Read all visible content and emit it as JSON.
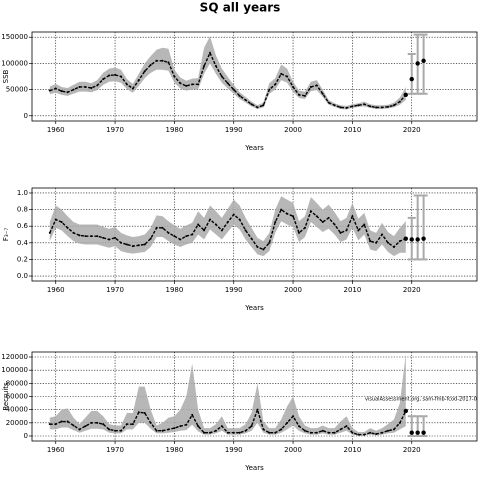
{
  "chart_data": [
    {
      "type": "line",
      "title": "SQ all years",
      "xlabel": "Years",
      "ylabel": "SSB",
      "grid": true,
      "color": "#000000",
      "band_color": "#aaaaaa",
      "projection_color": "#aaaaaa",
      "xlim": [
        1956,
        2031
      ],
      "xticks": [
        1960,
        1970,
        1980,
        1990,
        2000,
        2010,
        2020
      ],
      "ylim": [
        -10000,
        160000
      ],
      "yticks": [
        0,
        50000,
        100000,
        150000
      ],
      "x": [
        1959,
        1960,
        1961,
        1962,
        1963,
        1964,
        1965,
        1966,
        1967,
        1968,
        1969,
        1970,
        1971,
        1972,
        1973,
        1974,
        1975,
        1976,
        1977,
        1978,
        1979,
        1980,
        1981,
        1982,
        1983,
        1984,
        1985,
        1986,
        1987,
        1988,
        1989,
        1990,
        1991,
        1992,
        1993,
        1994,
        1995,
        1996,
        1997,
        1998,
        1999,
        2000,
        2001,
        2002,
        2003,
        2004,
        2005,
        2006,
        2007,
        2008,
        2009,
        2010,
        2011,
        2012,
        2013,
        2014,
        2015,
        2016,
        2017,
        2018,
        2019
      ],
      "values": [
        48000,
        52000,
        47000,
        45000,
        50000,
        55000,
        55000,
        53000,
        58000,
        70000,
        77000,
        78000,
        75000,
        60000,
        52000,
        68000,
        85000,
        97000,
        105000,
        105000,
        102000,
        75000,
        62000,
        57000,
        60000,
        60000,
        95000,
        120000,
        95000,
        75000,
        62000,
        50000,
        38000,
        30000,
        22000,
        16000,
        20000,
        50000,
        60000,
        80000,
        75000,
        55000,
        40000,
        38000,
        55000,
        58000,
        42000,
        25000,
        20000,
        16000,
        15000,
        18000,
        20000,
        22000,
        18000,
        16000,
        16000,
        17000,
        20000,
        27000,
        40000
      ],
      "lower": [
        41000,
        44000,
        40000,
        38000,
        42000,
        46000,
        46000,
        45000,
        49000,
        59000,
        65000,
        66000,
        63000,
        51000,
        44000,
        57000,
        72000,
        82000,
        88000,
        88000,
        86000,
        63000,
        52000,
        48000,
        50000,
        50000,
        80000,
        100000,
        80000,
        63000,
        52000,
        42000,
        32000,
        25000,
        18000,
        13000,
        16000,
        42000,
        50000,
        68000,
        63000,
        46000,
        34000,
        32000,
        47000,
        49000,
        36000,
        21000,
        17000,
        13000,
        12000,
        15000,
        17000,
        18000,
        15000,
        13000,
        13000,
        14000,
        16000,
        21000,
        30000
      ],
      "upper": [
        56000,
        61000,
        55000,
        53000,
        59000,
        65000,
        65000,
        62000,
        68000,
        82000,
        90000,
        92000,
        88000,
        70000,
        61000,
        80000,
        100000,
        114000,
        126000,
        130000,
        128000,
        88000,
        73000,
        67000,
        71000,
        72000,
        130000,
        152000,
        115000,
        90000,
        74000,
        59000,
        45000,
        36000,
        27000,
        20000,
        25000,
        62000,
        72000,
        98000,
        90000,
        65000,
        48000,
        46000,
        65000,
        68000,
        50000,
        30000,
        24000,
        20000,
        19000,
        22000,
        24000,
        27000,
        22000,
        20000,
        20000,
        21000,
        25000,
        35000,
        55000
      ],
      "projection": {
        "x": [
          2020,
          2021,
          2022
        ],
        "values": [
          70000,
          100000,
          105000
        ],
        "lower": [
          42000,
          42000,
          42000
        ],
        "upper": [
          118000,
          155000,
          155000
        ]
      }
    },
    {
      "type": "line",
      "xlabel": "Years",
      "ylabel": "F₃₋₇",
      "grid": true,
      "color": "#000000",
      "band_color": "#aaaaaa",
      "projection_color": "#aaaaaa",
      "xlim": [
        1956,
        2031
      ],
      "xticks": [
        1960,
        1970,
        1980,
        1990,
        2000,
        2010,
        2020
      ],
      "ylim": [
        -0.06,
        1.06
      ],
      "yticks": [
        {
          "value": 0,
          "label": "0.0"
        },
        0.2,
        0.4,
        0.6,
        0.8,
        {
          "value": 1,
          "label": "1.0"
        }
      ],
      "x": [
        1959,
        1960,
        1961,
        1962,
        1963,
        1964,
        1965,
        1966,
        1967,
        1968,
        1969,
        1970,
        1971,
        1972,
        1973,
        1974,
        1975,
        1976,
        1977,
        1978,
        1979,
        1980,
        1981,
        1982,
        1983,
        1984,
        1985,
        1986,
        1987,
        1988,
        1989,
        1990,
        1991,
        1992,
        1993,
        1994,
        1995,
        1996,
        1997,
        1998,
        1999,
        2000,
        2001,
        2002,
        2003,
        2004,
        2005,
        2006,
        2007,
        2008,
        2009,
        2010,
        2011,
        2012,
        2013,
        2014,
        2015,
        2016,
        2017,
        2018,
        2019
      ],
      "values": [
        0.52,
        0.68,
        0.65,
        0.58,
        0.52,
        0.49,
        0.48,
        0.48,
        0.48,
        0.46,
        0.44,
        0.46,
        0.4,
        0.38,
        0.36,
        0.37,
        0.38,
        0.45,
        0.58,
        0.58,
        0.52,
        0.48,
        0.44,
        0.48,
        0.5,
        0.62,
        0.55,
        0.68,
        0.62,
        0.55,
        0.65,
        0.74,
        0.68,
        0.55,
        0.45,
        0.35,
        0.32,
        0.4,
        0.65,
        0.8,
        0.75,
        0.72,
        0.52,
        0.58,
        0.78,
        0.72,
        0.65,
        0.7,
        0.62,
        0.52,
        0.55,
        0.72,
        0.55,
        0.62,
        0.42,
        0.4,
        0.5,
        0.4,
        0.35,
        0.42,
        0.45
      ],
      "lower": [
        0.42,
        0.58,
        0.55,
        0.48,
        0.42,
        0.39,
        0.38,
        0.38,
        0.38,
        0.36,
        0.34,
        0.36,
        0.3,
        0.28,
        0.27,
        0.28,
        0.29,
        0.35,
        0.47,
        0.47,
        0.42,
        0.38,
        0.35,
        0.38,
        0.4,
        0.5,
        0.44,
        0.56,
        0.5,
        0.44,
        0.53,
        0.62,
        0.56,
        0.44,
        0.35,
        0.26,
        0.24,
        0.3,
        0.52,
        0.66,
        0.62,
        0.59,
        0.41,
        0.47,
        0.65,
        0.59,
        0.53,
        0.57,
        0.5,
        0.41,
        0.44,
        0.58,
        0.43,
        0.5,
        0.32,
        0.3,
        0.38,
        0.29,
        0.24,
        0.28,
        0.28
      ],
      "upper": [
        0.65,
        0.85,
        0.8,
        0.72,
        0.65,
        0.62,
        0.62,
        0.62,
        0.62,
        0.59,
        0.57,
        0.59,
        0.52,
        0.49,
        0.47,
        0.48,
        0.5,
        0.58,
        0.73,
        0.72,
        0.66,
        0.61,
        0.57,
        0.61,
        0.64,
        0.78,
        0.7,
        0.85,
        0.78,
        0.7,
        0.81,
        0.92,
        0.85,
        0.7,
        0.58,
        0.46,
        0.42,
        0.52,
        0.8,
        0.96,
        0.92,
        0.88,
        0.66,
        0.72,
        0.95,
        0.88,
        0.8,
        0.86,
        0.77,
        0.66,
        0.7,
        0.88,
        0.69,
        0.76,
        0.55,
        0.52,
        0.64,
        0.53,
        0.48,
        0.58,
        0.66
      ],
      "projection": {
        "x": [
          2020,
          2021,
          2022
        ],
        "values": [
          0.44,
          0.44,
          0.45
        ],
        "lower": [
          0.2,
          0.2,
          0.2
        ],
        "upper": [
          0.7,
          0.97,
          0.97
        ]
      }
    },
    {
      "type": "line",
      "xlabel": "Years",
      "ylabel": "Recruits",
      "grid": true,
      "annotation": "visualAssessment.org, sam-fmb-fcod-2017-0",
      "color": "#000000",
      "band_color": "#aaaaaa",
      "projection_color": "#aaaaaa",
      "xlim": [
        1956,
        2031
      ],
      "xticks": [
        1960,
        1970,
        1980,
        1990,
        2000,
        2010,
        2020
      ],
      "ylim": [
        -7600,
        127600
      ],
      "yticks": [
        0,
        20000,
        40000,
        60000,
        80000,
        100000,
        120000
      ],
      "x": [
        1959,
        1960,
        1961,
        1962,
        1963,
        1964,
        1965,
        1966,
        1967,
        1968,
        1969,
        1970,
        1971,
        1972,
        1973,
        1974,
        1975,
        1976,
        1977,
        1978,
        1979,
        1980,
        1981,
        1982,
        1983,
        1984,
        1985,
        1986,
        1987,
        1988,
        1989,
        1990,
        1991,
        1992,
        1993,
        1994,
        1995,
        1996,
        1997,
        1998,
        1999,
        2000,
        2001,
        2002,
        2003,
        2004,
        2005,
        2006,
        2007,
        2008,
        2009,
        2010,
        2011,
        2012,
        2013,
        2014,
        2015,
        2016,
        2017,
        2018,
        2019
      ],
      "values": [
        18000,
        18000,
        22000,
        22000,
        16000,
        10000,
        15000,
        20000,
        20000,
        18000,
        10000,
        8000,
        8000,
        18000,
        18000,
        36000,
        35000,
        20000,
        8000,
        8000,
        10000,
        12000,
        15000,
        17000,
        32000,
        15000,
        5000,
        5000,
        8000,
        15000,
        5000,
        5000,
        5000,
        8000,
        15000,
        40000,
        10000,
        5000,
        5000,
        10000,
        20000,
        30000,
        15000,
        8000,
        5000,
        5000,
        8000,
        5000,
        5000,
        10000,
        15000,
        5000,
        2000,
        2000,
        5000,
        3000,
        5000,
        8000,
        10000,
        20000,
        38000
      ],
      "lower": [
        10000,
        10000,
        13000,
        13000,
        9000,
        5000,
        8000,
        11000,
        11000,
        10000,
        5000,
        4000,
        4000,
        10000,
        10000,
        20000,
        20000,
        11000,
        4000,
        4000,
        5000,
        6000,
        8000,
        9000,
        17000,
        7000,
        2000,
        2000,
        4000,
        8000,
        2000,
        2000,
        2000,
        4000,
        8000,
        20000,
        5000,
        2000,
        2000,
        5000,
        10000,
        16000,
        8000,
        4000,
        2000,
        2000,
        4000,
        2000,
        2000,
        5000,
        8000,
        2000,
        1000,
        1000,
        2000,
        1000,
        2000,
        4000,
        5000,
        10000,
        15000
      ],
      "upper": [
        28000,
        30000,
        40000,
        42000,
        28000,
        18000,
        28000,
        38000,
        38000,
        30000,
        18000,
        16000,
        16000,
        35000,
        35000,
        75000,
        75000,
        40000,
        16000,
        20000,
        28000,
        30000,
        40000,
        60000,
        110000,
        40000,
        12000,
        12000,
        18000,
        30000,
        12000,
        12000,
        12000,
        18000,
        35000,
        80000,
        22000,
        12000,
        12000,
        25000,
        45000,
        60000,
        30000,
        16000,
        12000,
        12000,
        16000,
        12000,
        12000,
        22000,
        30000,
        12000,
        6000,
        6000,
        12000,
        8000,
        12000,
        18000,
        25000,
        50000,
        125000
      ],
      "projection": {
        "x": [
          2020,
          2021,
          2022
        ],
        "values": [
          5000,
          5000,
          5000
        ],
        "lower": [
          0,
          0,
          0
        ],
        "upper": [
          30000,
          30000,
          30000
        ]
      }
    }
  ]
}
